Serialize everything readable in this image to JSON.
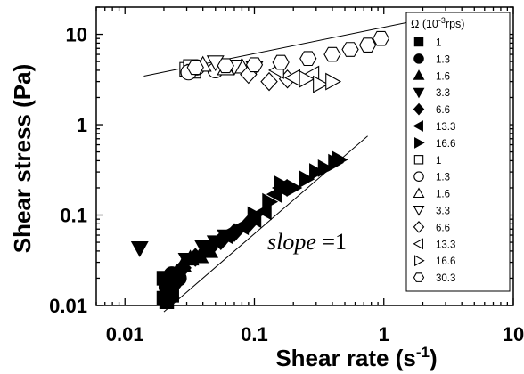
{
  "chart_data": {
    "type": "scatter",
    "xscale": "log",
    "yscale": "log",
    "xlim": [
      0.006,
      10
    ],
    "ylim": [
      0.01,
      20
    ],
    "xticks": [
      0.01,
      0.1,
      1,
      10
    ],
    "yticks": [
      0.01,
      0.1,
      1,
      10
    ],
    "xtick_labels": [
      "0.01",
      "0.1",
      "1",
      "10"
    ],
    "ytick_labels": [
      "0.01",
      "0.1",
      "1",
      "10"
    ],
    "xlabel": "Shear rate (s",
    "xlabel_sup": "-1",
    "xlabel_end": ")",
    "ylabel": "Shear stress (Pa)",
    "legend_title_pre": "Ω (10",
    "legend_title_sup": "-3",
    "legend_title_post": "rps)",
    "annotation_italic": "slope",
    "annotation_rest": " =1",
    "fit_lines": [
      {
        "x": [
          0.02,
          0.75
        ],
        "y": [
          0.0085,
          0.75
        ]
      },
      {
        "x": [
          0.014,
          3.0
        ],
        "y": [
          3.45,
          16.5
        ]
      }
    ],
    "series": [
      {
        "name": "1",
        "marker": "square",
        "filled": true,
        "x": [
          0.02,
          0.021,
          0.022,
          0.02,
          0.021,
          0.023
        ],
        "y": [
          0.012,
          0.015,
          0.018,
          0.02,
          0.011,
          0.013
        ]
      },
      {
        "name": "1.3",
        "marker": "circle",
        "filled": true,
        "x": [
          0.021,
          0.022,
          0.024,
          0.023,
          0.026
        ],
        "y": [
          0.016,
          0.014,
          0.018,
          0.022,
          0.02
        ]
      },
      {
        "name": "1.6",
        "marker": "triangle-up",
        "filled": true,
        "x": [
          0.022,
          0.025,
          0.028,
          0.032,
          0.038,
          0.045
        ],
        "y": [
          0.02,
          0.023,
          0.028,
          0.033,
          0.035,
          0.04
        ]
      },
      {
        "name": "3.3",
        "marker": "triangle-down",
        "filled": true,
        "x": [
          0.013,
          0.03,
          0.04,
          0.05,
          0.06
        ],
        "y": [
          0.043,
          0.032,
          0.045,
          0.05,
          0.058
        ]
      },
      {
        "name": "6.6",
        "marker": "diamond",
        "filled": true,
        "x": [
          0.028,
          0.035,
          0.045,
          0.055,
          0.07,
          0.09
        ],
        "y": [
          0.026,
          0.034,
          0.043,
          0.052,
          0.064,
          0.08
        ]
      },
      {
        "name": "13.3",
        "marker": "triangle-left",
        "filled": true,
        "x": [
          0.06,
          0.08,
          0.1,
          0.12,
          0.145,
          0.16
        ],
        "y": [
          0.06,
          0.075,
          0.09,
          0.11,
          0.17,
          0.2
        ]
      },
      {
        "name": "16.6",
        "marker": "triangle-right",
        "filled": true,
        "x": [
          0.1,
          0.13,
          0.16,
          0.2,
          0.25,
          0.3,
          0.35,
          0.42,
          0.45
        ],
        "y": [
          0.1,
          0.14,
          0.22,
          0.2,
          0.25,
          0.3,
          0.33,
          0.38,
          0.41
        ]
      },
      {
        "name": "1",
        "marker": "square",
        "filled": false,
        "x": [
          0.03,
          0.032,
          0.034
        ],
        "y": [
          4.1,
          4.4,
          3.9
        ]
      },
      {
        "name": "1.3",
        "marker": "circle",
        "filled": false,
        "x": [
          0.031,
          0.036,
          0.05
        ],
        "y": [
          3.8,
          4.3,
          4.0
        ]
      },
      {
        "name": "1.6",
        "marker": "triangle-up",
        "filled": false,
        "x": [
          0.04,
          0.06,
          0.08
        ],
        "y": [
          4.6,
          4.2,
          4.4
        ]
      },
      {
        "name": "3.3",
        "marker": "triangle-down",
        "filled": false,
        "x": [
          0.05,
          0.07,
          0.1
        ],
        "y": [
          4.9,
          4.4,
          4.2
        ]
      },
      {
        "name": "6.6",
        "marker": "diamond",
        "filled": false,
        "x": [
          0.09,
          0.13,
          0.18
        ],
        "y": [
          3.6,
          3.0,
          3.2
        ]
      },
      {
        "name": "13.3",
        "marker": "triangle-left",
        "filled": false,
        "x": [
          0.15,
          0.2,
          0.28
        ],
        "y": [
          4.0,
          3.3,
          3.6
        ]
      },
      {
        "name": "16.6",
        "marker": "triangle-right",
        "filled": false,
        "x": [
          0.25,
          0.32,
          0.4
        ],
        "y": [
          3.2,
          2.8,
          3.0
        ]
      },
      {
        "name": "30.3",
        "marker": "hexagon",
        "filled": false,
        "x": [
          0.035,
          0.06,
          0.1,
          0.16,
          0.26,
          0.4,
          0.55,
          0.75,
          0.95
        ],
        "y": [
          4.3,
          4.5,
          4.6,
          4.9,
          5.4,
          6.0,
          6.8,
          7.6,
          9.0
        ]
      }
    ]
  }
}
